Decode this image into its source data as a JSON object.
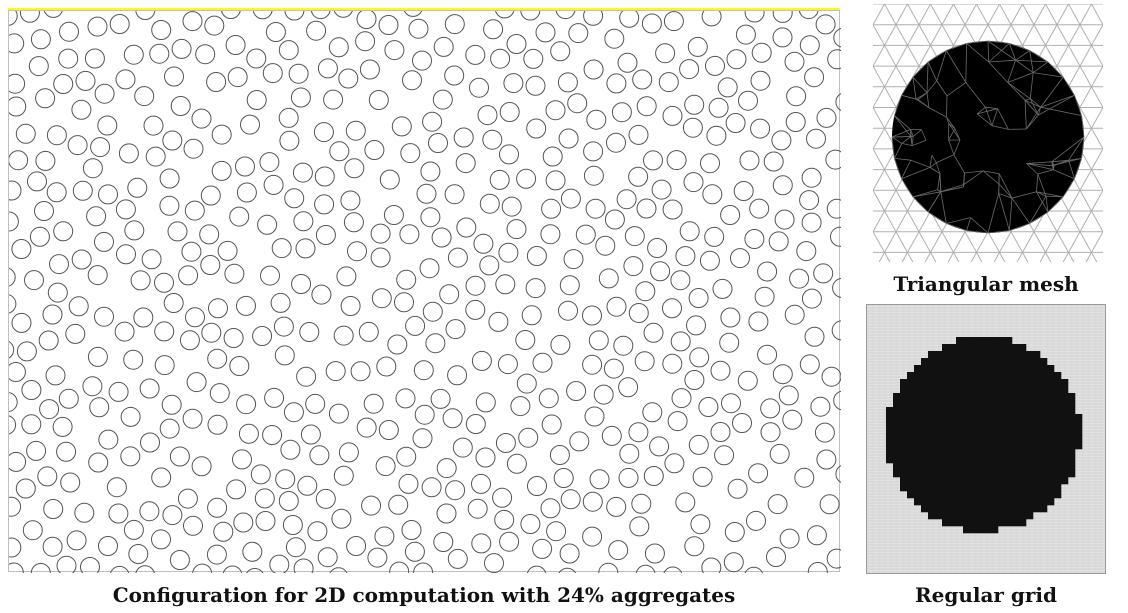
{
  "captions": {
    "main": "Configuration for 2D computation with 24% aggregates",
    "mesh": "Triangular mesh",
    "grid": "Regular grid"
  },
  "colors": {
    "aggregate_fill": "#000000",
    "circle_stroke": "#555555",
    "top_bar": "#ffff00",
    "mesh_lines": "#b0b0b0",
    "grid_background": "#e2e2e2"
  },
  "aggregate_fraction_percent": 24
}
